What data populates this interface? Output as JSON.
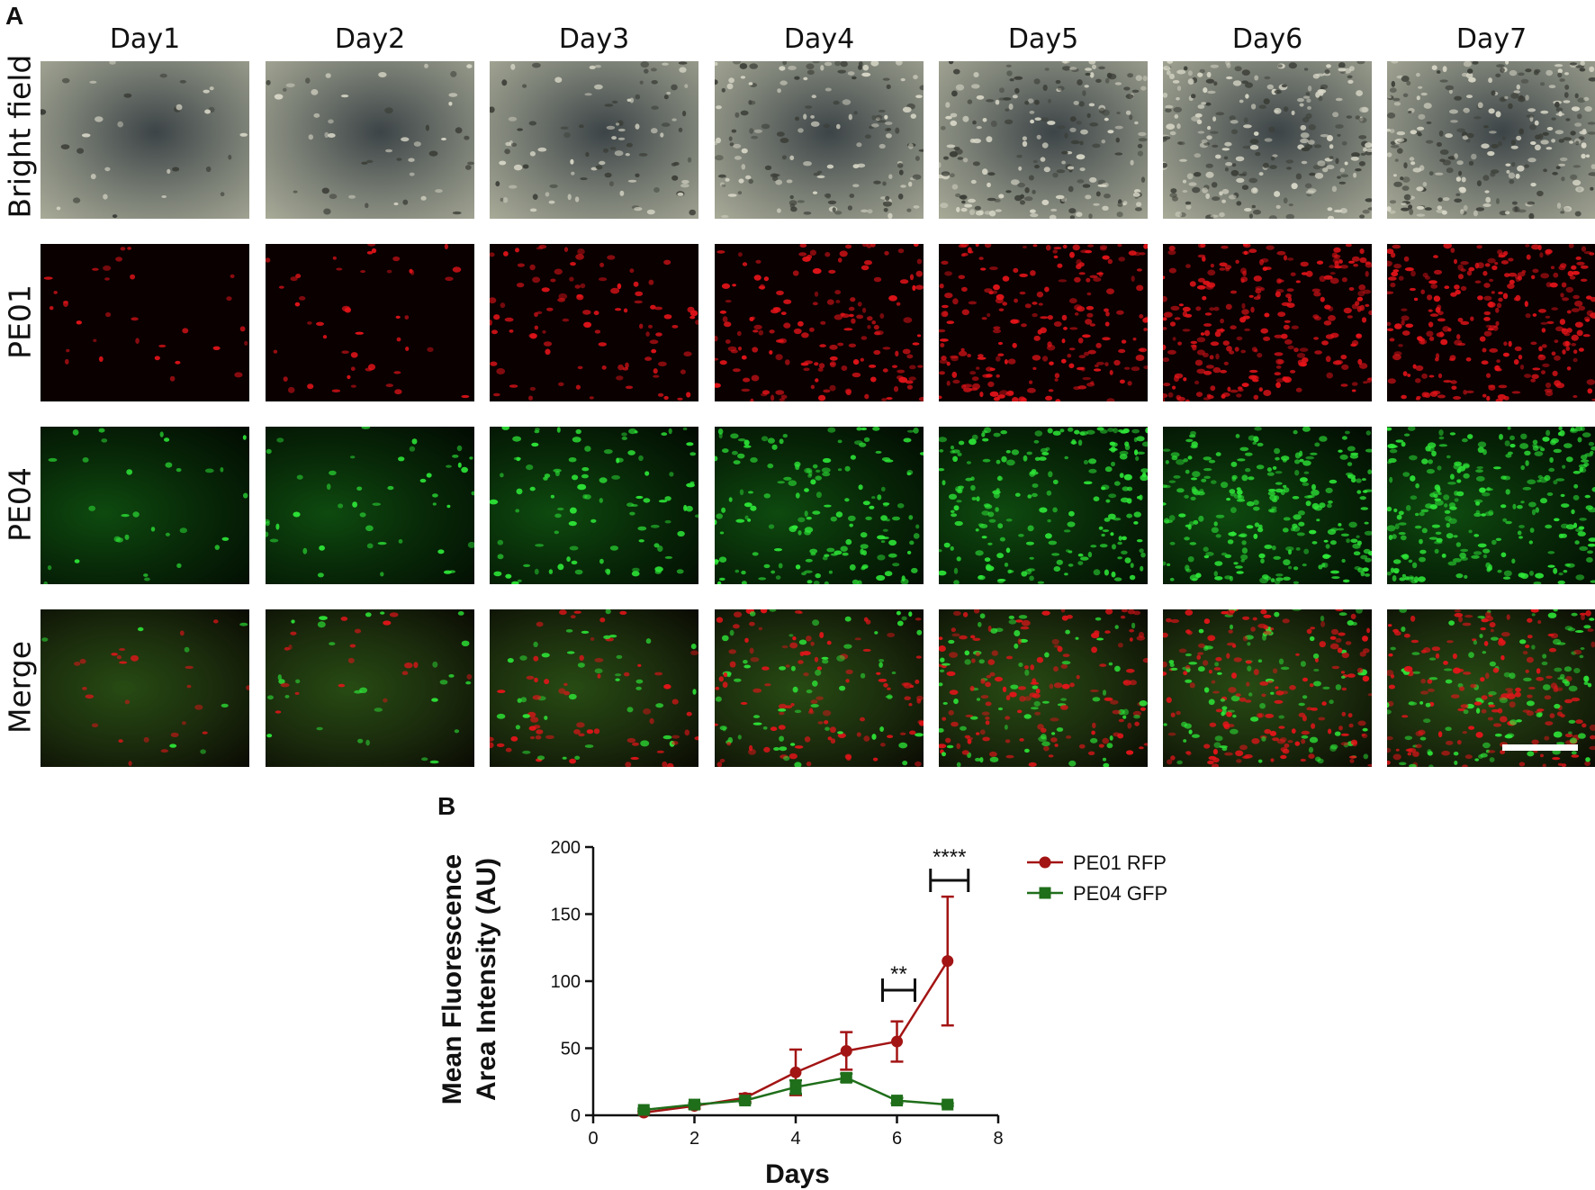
{
  "panels": {
    "a": "A",
    "b": "B"
  },
  "columns": [
    "Day1",
    "Day2",
    "Day3",
    "Day4",
    "Day5",
    "Day6",
    "Day7"
  ],
  "rows": [
    "Bright field",
    "PE01",
    "PE04",
    "Merge"
  ],
  "cell_density": [
    0.08,
    0.14,
    0.34,
    0.58,
    0.78,
    0.95,
    1.0
  ],
  "colors": {
    "rfp": "#a31414",
    "gfp": "#1f6e1a",
    "red_cells": "#e8141a",
    "green_cells": "#2ee838"
  },
  "chart_data": {
    "type": "line",
    "xlabel": "Days",
    "ylabel_lines": [
      "Mean Fluorescence",
      "Area Intensity (AU)"
    ],
    "xlim": [
      0,
      8
    ],
    "ylim": [
      0,
      200
    ],
    "xticks": [
      0,
      2,
      4,
      6,
      8
    ],
    "yticks": [
      0,
      50,
      100,
      150,
      200
    ],
    "legend_position": "top-right",
    "series": [
      {
        "name": "PE01 RFP",
        "color": "#a31414",
        "marker": "circle",
        "x": [
          1,
          2,
          3,
          4,
          5,
          6,
          7
        ],
        "y": [
          2,
          7,
          13,
          32,
          48,
          55,
          115
        ],
        "err": [
          1,
          2,
          3,
          17,
          14,
          15,
          48
        ]
      },
      {
        "name": "PE04 GFP",
        "color": "#1f6e1a",
        "marker": "square",
        "x": [
          1,
          2,
          3,
          4,
          5,
          6,
          7
        ],
        "y": [
          4,
          8,
          11,
          21,
          28,
          11,
          8
        ],
        "err": [
          1,
          1,
          2,
          5,
          3,
          2,
          1
        ]
      }
    ],
    "significance": [
      {
        "label": "**",
        "x": 6
      },
      {
        "label": "****",
        "x": 7
      }
    ]
  }
}
